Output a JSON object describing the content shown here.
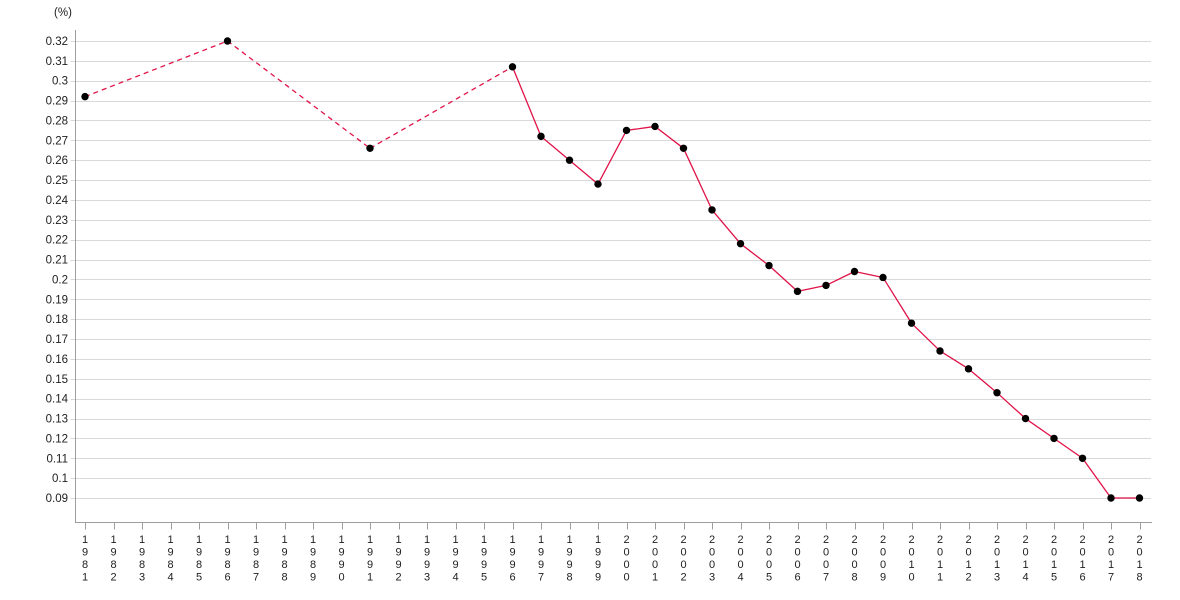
{
  "chart_data": {
    "type": "line",
    "title": "",
    "unit_label": "(%)",
    "xlabel": "",
    "ylabel": "(%)",
    "x_categories": [
      "1981",
      "1982",
      "1983",
      "1984",
      "1985",
      "1986",
      "1987",
      "1988",
      "1989",
      "1990",
      "1991",
      "1992",
      "1993",
      "1994",
      "1995",
      "1996",
      "1997",
      "1998",
      "1999",
      "2000",
      "2001",
      "2002",
      "2003",
      "2004",
      "2005",
      "2006",
      "2007",
      "2008",
      "2009",
      "2010",
      "2011",
      "2012",
      "2013",
      "2014",
      "2015",
      "2016",
      "2017",
      "2018"
    ],
    "y_tick_labels": [
      "0.32",
      "0.31",
      "0.3",
      "0.29",
      "0.28",
      "0.27",
      "0.26",
      "0.25",
      "0.24",
      "0.23",
      "0.22",
      "0.21",
      "0.2",
      "0.19",
      "0.18",
      "0.17",
      "0.16",
      "0.15",
      "0.14",
      "0.13",
      "0.12",
      "0.11",
      "0.1",
      "0.09"
    ],
    "ylim": [
      0.078,
      0.326
    ],
    "grid": "horizontal-only",
    "legend": "none",
    "x_label_orientation": "vertical-stacked-digits",
    "dashed_for_multi_year_gaps": true,
    "series": [
      {
        "points": [
          {
            "year": "1981",
            "value": 0.292
          },
          {
            "year": "1986",
            "value": 0.32
          },
          {
            "year": "1991",
            "value": 0.266
          },
          {
            "year": "1996",
            "value": 0.307
          },
          {
            "year": "1997",
            "value": 0.272
          },
          {
            "year": "1998",
            "value": 0.26
          },
          {
            "year": "1999",
            "value": 0.248
          },
          {
            "year": "2000",
            "value": 0.275
          },
          {
            "year": "2001",
            "value": 0.277
          },
          {
            "year": "2002",
            "value": 0.266
          },
          {
            "year": "2003",
            "value": 0.235
          },
          {
            "year": "2004",
            "value": 0.218
          },
          {
            "year": "2005",
            "value": 0.207
          },
          {
            "year": "2006",
            "value": 0.194
          },
          {
            "year": "2007",
            "value": 0.197
          },
          {
            "year": "2008",
            "value": 0.204
          },
          {
            "year": "2009",
            "value": 0.201
          },
          {
            "year": "2010",
            "value": 0.178
          },
          {
            "year": "2011",
            "value": 0.164
          },
          {
            "year": "2012",
            "value": 0.155
          },
          {
            "year": "2013",
            "value": 0.143
          },
          {
            "year": "2014",
            "value": 0.13
          },
          {
            "year": "2015",
            "value": 0.12
          },
          {
            "year": "2016",
            "value": 0.11
          },
          {
            "year": "2017",
            "value": 0.09
          },
          {
            "year": "2018",
            "value": 0.09
          }
        ]
      }
    ],
    "colors": {
      "line": "#e01348",
      "marker": "#000000",
      "gridline": "#d9d9d9",
      "axis": "#9d9d9d",
      "text": "#212121",
      "background": "#ffffff"
    }
  }
}
